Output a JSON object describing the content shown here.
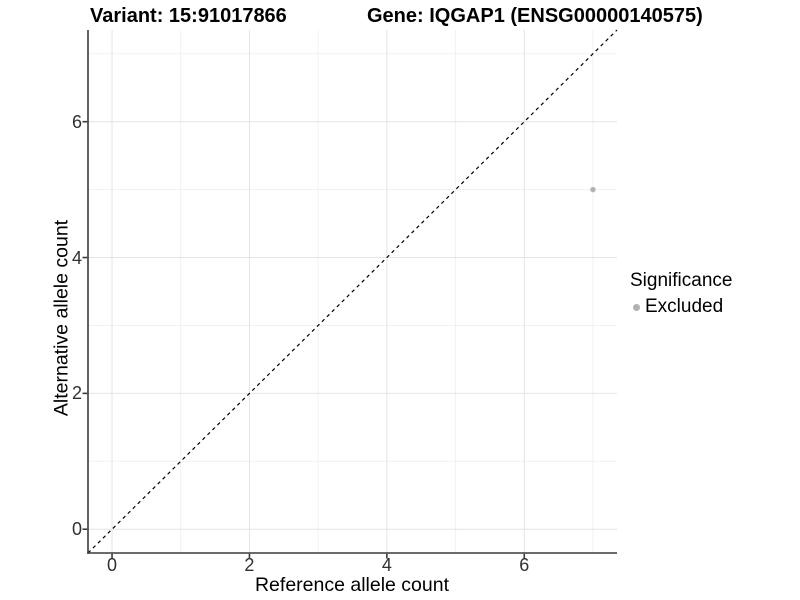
{
  "header": {
    "title_left": "Variant: 15:91017866",
    "title_right": "Gene: IQGAP1 (ENSG00000140575)"
  },
  "chart_data": {
    "type": "scatter",
    "title_left": "Variant: 15:91017866",
    "title_right": "Gene: IQGAP1 (ENSG00000140575)",
    "xlabel": "Reference allele count",
    "ylabel": "Alternative allele count",
    "xlim": [
      -0.35,
      7.35
    ],
    "ylim": [
      -0.35,
      7.35
    ],
    "xticks": [
      0,
      2,
      4,
      6
    ],
    "yticks": [
      0,
      2,
      4,
      6
    ],
    "grid_major": [
      0,
      2,
      4,
      6
    ],
    "grid_minor": [
      1,
      3,
      5,
      7
    ],
    "grid": true,
    "points": [
      {
        "x": 7,
        "y": 5,
        "significance": "Excluded"
      }
    ],
    "identity_line": {
      "style": "dashed",
      "from": [
        -0.35,
        -0.35
      ],
      "to": [
        7.35,
        7.35
      ]
    },
    "legend": {
      "title": "Significance",
      "position": "right",
      "items": [
        {
          "label": "Excluded",
          "color": "#b2b2b2"
        }
      ]
    },
    "colors": {
      "background": "#ffffff",
      "point_excluded": "#b2b2b2",
      "grid_major": "#e4e4e4",
      "grid_minor": "#f1f1f1",
      "axis_line": "#3a3a3a",
      "tick_mark": "#3a3a3a",
      "dashed_line": "#000000"
    }
  }
}
